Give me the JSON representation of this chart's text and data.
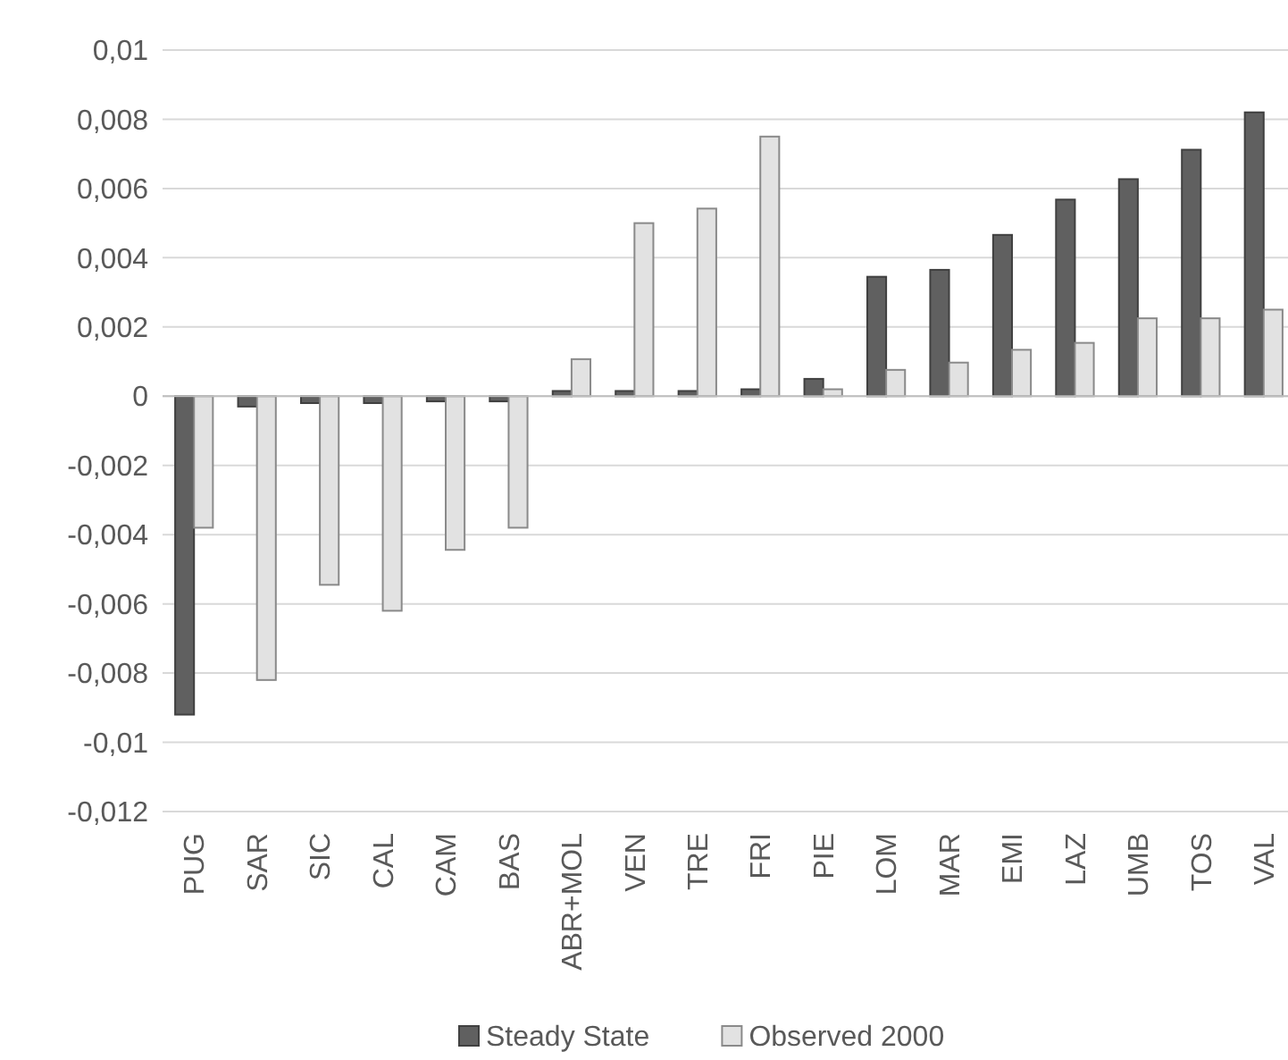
{
  "chart_data": {
    "type": "bar",
    "categories": [
      "PUG",
      "SAR",
      "SIC",
      "CAL",
      "CAM",
      "BAS",
      "ABR+MOL",
      "VEN",
      "TRE",
      "FRI",
      "PIE",
      "LOM",
      "MAR",
      "EMI",
      "LAZ",
      "UMB",
      "TOS",
      "VAL"
    ],
    "series": [
      {
        "name": "Steady State",
        "color": "#606060",
        "values": [
          -0.0092,
          -0.0003,
          -0.0002,
          -0.0002,
          -0.00015,
          -0.00015,
          0.00015,
          0.00015,
          0.00015,
          0.0002,
          0.0005,
          0.00345,
          0.00365,
          0.00466,
          0.00568,
          0.00627,
          0.00712,
          0.0082
        ]
      },
      {
        "name": "Observed 2000",
        "color": "#e2e2e2",
        "values": [
          -0.0038,
          -0.0082,
          -0.00545,
          -0.0062,
          -0.00444,
          -0.0038,
          0.00107,
          0.005,
          0.00542,
          0.0075,
          0.0002,
          0.00076,
          0.00097,
          0.00134,
          0.00154,
          0.00225,
          0.00225,
          0.0025
        ]
      }
    ],
    "ylim": [
      -0.012,
      0.01
    ],
    "yticks": [
      {
        "value": -0.012,
        "label": "-0,012"
      },
      {
        "value": -0.01,
        "label": "-0,01"
      },
      {
        "value": -0.008,
        "label": "-0,008"
      },
      {
        "value": -0.006,
        "label": "-0,006"
      },
      {
        "value": -0.004,
        "label": "-0,004"
      },
      {
        "value": -0.002,
        "label": "-0,002"
      },
      {
        "value": 0,
        "label": "0"
      },
      {
        "value": 0.002,
        "label": "0,002"
      },
      {
        "value": 0.004,
        "label": "0,004"
      },
      {
        "value": 0.006,
        "label": "0,006"
      },
      {
        "value": 0.008,
        "label": "0,008"
      },
      {
        "value": 0.01,
        "label": "0,01"
      }
    ],
    "grid": "y",
    "legend": "bottom"
  }
}
